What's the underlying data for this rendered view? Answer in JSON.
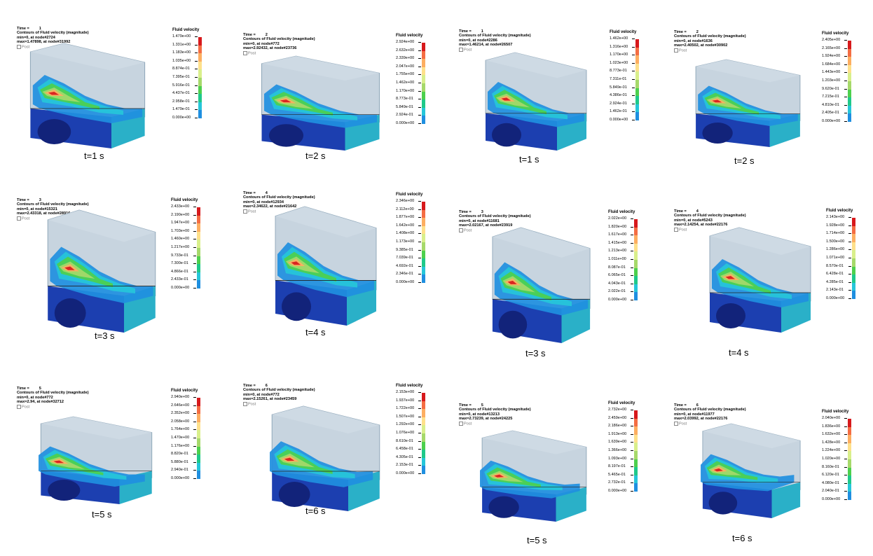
{
  "legend_title": "Fluid velocity",
  "colors": [
    "#d7191c",
    "#f46d43",
    "#fdae61",
    "#fee08b",
    "#d9ef8b",
    "#a6d96a",
    "#4dd04d",
    "#1fc98a",
    "#26c6d9",
    "#1f8fe0",
    "#1e4ee0"
  ],
  "panels": [
    {
      "time_line": "Time =         1",
      "contour": "Contours of Fluid velocity (magnitude)",
      "min": "min=0, at node#2724",
      "max": "max=1.47898, at node#31992",
      "post": "Post",
      "t_label": "t=1 s",
      "legend": [
        "1.479e+00",
        "1.331e+00",
        "1.183e+00",
        "1.035e+00",
        "8.874e-01",
        "7.395e-01",
        "5.916e-01",
        "4.437e-01",
        "2.958e-01",
        "1.479e-01",
        "0.000e+00"
      ]
    },
    {
      "time_line": "Time =         2",
      "contour": "Contours of Fluid velocity (magnitude)",
      "min": "min=0, at node#772",
      "max": "max=2.92432, at node#23736",
      "post": "Post",
      "t_label": "t=2 s",
      "legend": [
        "2.924e+00",
        "2.632e+00",
        "2.339e+00",
        "2.047e+00",
        "1.755e+00",
        "1.462e+00",
        "1.170e+00",
        "8.773e-01",
        "5.849e-01",
        "2.924e-01",
        "0.000e+00"
      ]
    },
    {
      "time_line": "Time =         1",
      "contour": "Contours of Fluid velocity (magnitude)",
      "min": "min=0, at node#2286",
      "max": "max=1.46214, at node#26507",
      "post": "Post",
      "t_label": "t=1 s",
      "legend": [
        "1.462e+00",
        "1.316e+00",
        "1.170e+00",
        "1.023e+00",
        "8.773e-01",
        "7.311e-01",
        "5.849e-01",
        "4.386e-01",
        "2.924e-01",
        "1.462e-01",
        "0.000e+00"
      ]
    },
    {
      "time_line": "Time =         2",
      "contour": "Contours of Fluid velocity (magnitude)",
      "min": "min=0, at node#1636",
      "max": "max=2.40502, at node#30902",
      "post": "Post",
      "t_label": "t=2 s",
      "legend": [
        "2.405e+00",
        "2.165e+00",
        "1.924e+00",
        "1.684e+00",
        "1.443e+00",
        "1.203e+00",
        "9.620e-01",
        "7.215e-01",
        "4.810e-01",
        "2.405e-01",
        "0.000e+00"
      ]
    },
    {
      "time_line": "Time =         3",
      "contour": "Contours of Fluid velocity (magnitude)",
      "min": "min=0, at node#15321",
      "max": "max=2.43318, at node#28916",
      "post": "Post",
      "t_label": "t=3 s",
      "legend": [
        "2.433e+00",
        "2.190e+00",
        "1.947e+00",
        "1.703e+00",
        "1.460e+00",
        "1.217e+00",
        "9.733e-01",
        "7.300e-01",
        "4.866e-01",
        "2.433e-01",
        "0.000e+00"
      ]
    },
    {
      "time_line": "Time =         4",
      "contour": "Contours of Fluid velocity (magnitude)",
      "min": "min=0, at node#12934",
      "max": "max=2.34622, at node#21642",
      "post": "Post",
      "t_label": "t=4 s",
      "legend": [
        "2.346e+00",
        "2.112e+00",
        "1.877e+00",
        "1.642e+00",
        "1.408e+00",
        "1.173e+00",
        "9.385e-01",
        "7.039e-01",
        "4.692e-01",
        "2.346e-01",
        "0.000e+00"
      ]
    },
    {
      "time_line": "Time =         3",
      "contour": "Contours of Fluid velocity (magnitude)",
      "min": "min=0, at node#11681",
      "max": "max=2.02167, at node#23919",
      "post": "Post",
      "t_label": "t=3 s",
      "legend": [
        "2.022e+00",
        "1.820e+00",
        "1.617e+00",
        "1.415e+00",
        "1.213e+00",
        "1.011e+00",
        "8.087e-01",
        "6.065e-01",
        "4.043e-01",
        "2.022e-01",
        "0.000e+00"
      ]
    },
    {
      "time_line": "Time =         4",
      "contour": "Contours of Fluid velocity (magnitude)",
      "min": "min=0, at node#5243",
      "max": "max=2.14254, at node#22176",
      "post": "Post",
      "t_label": "t=4 s",
      "legend": [
        "2.143e+00",
        "1.928e+00",
        "1.714e+00",
        "1.500e+00",
        "1.286e+00",
        "1.071e+00",
        "8.570e-01",
        "6.428e-01",
        "4.285e-01",
        "2.143e-01",
        "0.000e+00"
      ]
    },
    {
      "time_line": "Time =         5",
      "contour": "Contours of Fluid velocity (magnitude)",
      "min": "min=0, at node#772",
      "max": "max=2.94, at node#32712",
      "post": "Post",
      "t_label": "t=5 s",
      "legend": [
        "2.940e+00",
        "2.646e+00",
        "2.352e+00",
        "2.058e+00",
        "1.764e+00",
        "1.470e+00",
        "1.176e+00",
        "8.820e-01",
        "5.880e-01",
        "2.940e-01",
        "0.000e+00"
      ]
    },
    {
      "time_line": "Time =         6",
      "contour": "Contours of Fluid velocity (magnitude)",
      "min": "min=0, at node#772",
      "max": "max=2.15261, at node#23459",
      "post": "Post",
      "t_label": "t=6 s",
      "legend": [
        "2.153e+00",
        "1.937e+00",
        "1.722e+00",
        "1.507e+00",
        "1.292e+00",
        "1.076e+00",
        "8.610e-01",
        "6.458e-01",
        "4.305e-01",
        "2.153e-01",
        "0.000e+00"
      ]
    },
    {
      "time_line": "Time =         5",
      "contour": "Contours of Fluid velocity (magnitude)",
      "min": "min=0, at node#13213",
      "max": "max=2.73239, at node#24225",
      "post": "Post",
      "t_label": "t=5 s",
      "legend": [
        "2.732e+00",
        "2.459e+00",
        "2.186e+00",
        "1.913e+00",
        "1.639e+00",
        "1.366e+00",
        "1.093e+00",
        "8.197e-01",
        "5.465e-01",
        "2.732e-01",
        "0.000e+00"
      ]
    },
    {
      "time_line": "Time =         6",
      "contour": "Contours of Fluid velocity (magnitude)",
      "min": "min=0, at node#11977",
      "max": "max=2.03992, at node#22176",
      "post": "Post",
      "t_label": "t=6 s",
      "legend": [
        "2.040e+00",
        "1.836e+00",
        "1.632e+00",
        "1.428e+00",
        "1.224e+00",
        "1.020e+00",
        "8.160e-01",
        "6.120e-01",
        "4.080e-01",
        "2.040e-01",
        "0.000e+00"
      ]
    }
  ]
}
